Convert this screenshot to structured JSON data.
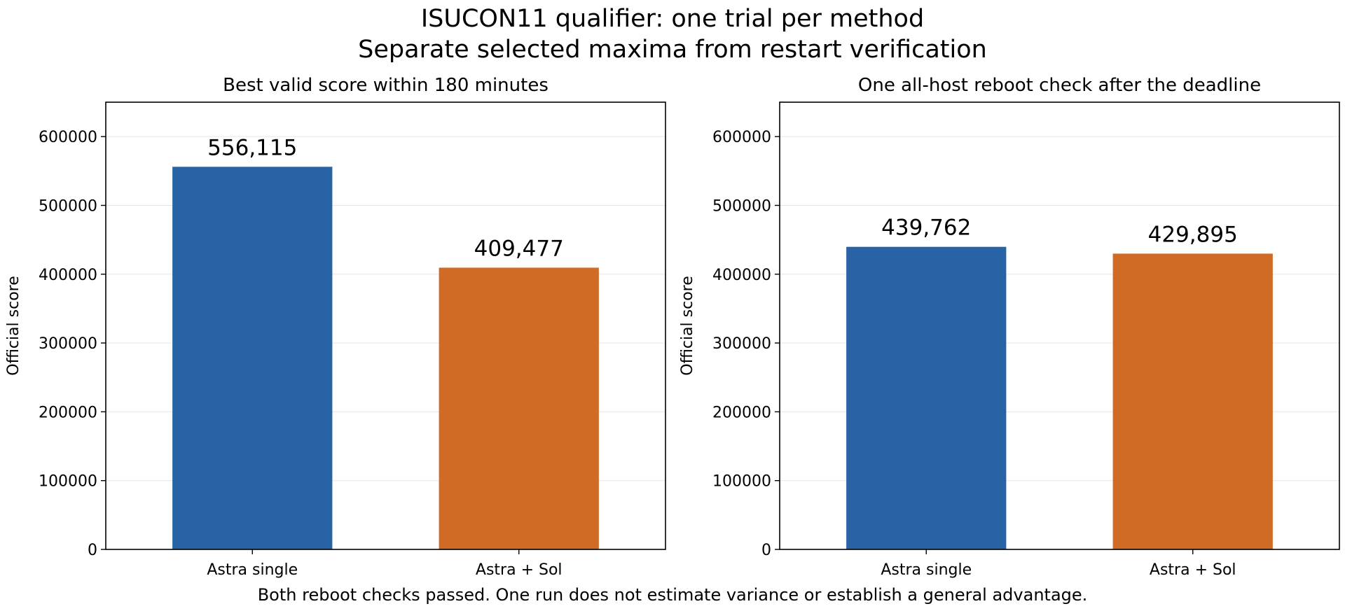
{
  "figure": {
    "title_line1": "ISUCON11 qualifier: one trial per method",
    "title_line2": "Separate selected maxima from restart verification",
    "footnote": "Both reboot checks passed. One run does not estimate variance or establish a general advantage."
  },
  "colors": {
    "astra_single": "#2864a5",
    "astra_sol": "#d06b26",
    "grid": "#e6e6e6"
  },
  "chart_data": [
    {
      "type": "bar",
      "title": "Best valid score within 180 minutes",
      "categories": [
        "Astra single",
        "Astra + Sol"
      ],
      "values": [
        556115,
        409477
      ],
      "value_labels": [
        "556,115",
        "409,477"
      ],
      "ylabel": "Official score",
      "xlabel": "",
      "ylim": [
        0,
        650000
      ],
      "yticks": [
        0,
        100000,
        200000,
        300000,
        400000,
        500000,
        600000
      ],
      "ytick_labels": [
        "0",
        "100000",
        "200000",
        "300000",
        "400000",
        "500000",
        "600000"
      ],
      "grid": "horizontal"
    },
    {
      "type": "bar",
      "title": "One all-host reboot check after the deadline",
      "categories": [
        "Astra single",
        "Astra + Sol"
      ],
      "values": [
        439762,
        429895
      ],
      "value_labels": [
        "439,762",
        "429,895"
      ],
      "ylabel": "Official score",
      "xlabel": "",
      "ylim": [
        0,
        650000
      ],
      "yticks": [
        0,
        100000,
        200000,
        300000,
        400000,
        500000,
        600000
      ],
      "ytick_labels": [
        "0",
        "100000",
        "200000",
        "300000",
        "400000",
        "500000",
        "600000"
      ],
      "grid": "horizontal"
    }
  ]
}
